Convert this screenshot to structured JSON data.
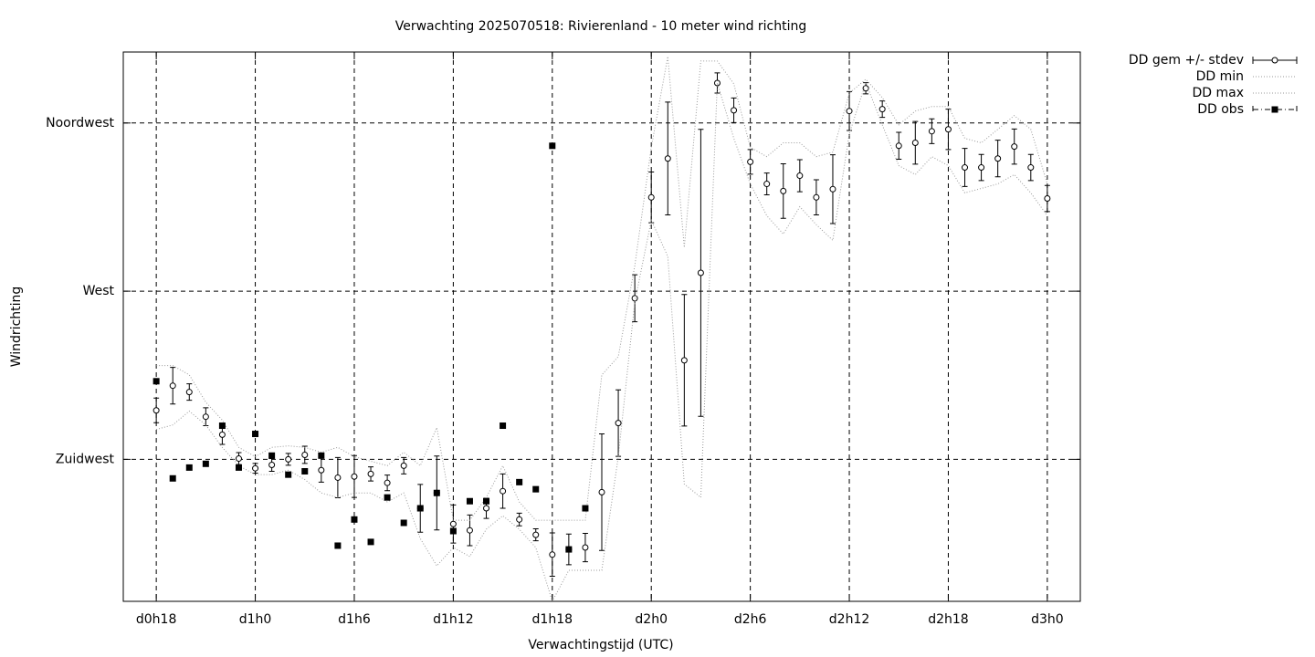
{
  "chart_data": {
    "type": "errorbar",
    "title": "Verwachting 2025070518: Rivierenland - 10 meter wind richting",
    "x_label": "Verwachtingstijd (UTC)",
    "y_label": "Windrichting",
    "x": [
      18,
      19,
      20,
      21,
      22,
      23,
      24,
      25,
      26,
      27,
      28,
      29,
      30,
      31,
      32,
      33,
      34,
      35,
      36,
      37,
      38,
      39,
      40,
      41,
      42,
      43,
      44,
      45,
      46,
      47,
      48,
      49,
      50,
      51,
      52,
      53,
      54,
      55,
      56,
      57,
      58,
      59,
      60,
      61,
      62,
      63,
      64,
      65,
      66,
      67,
      68,
      69,
      70,
      71,
      72
    ],
    "xlim": [
      16,
      74
    ],
    "xticks": [
      {
        "value": 18,
        "label": "d0h18"
      },
      {
        "value": 24,
        "label": "d1h0"
      },
      {
        "value": 30,
        "label": "d1h6"
      },
      {
        "value": 36,
        "label": "d1h12"
      },
      {
        "value": 42,
        "label": "d1h18"
      },
      {
        "value": 48,
        "label": "d2h0"
      },
      {
        "value": 54,
        "label": "d2h6"
      },
      {
        "value": 60,
        "label": "d2h12"
      },
      {
        "value": 66,
        "label": "d2h18"
      },
      {
        "value": 72,
        "label": "d3h0"
      }
    ],
    "ylim": [
      187,
      334
    ],
    "yticks": [
      {
        "value": 225,
        "label": "Zuidwest"
      },
      {
        "value": 270,
        "label": "West"
      },
      {
        "value": 315,
        "label": "Noordwest"
      }
    ],
    "grid": true,
    "legend": "outside-top-right",
    "series": [
      {
        "name": "DD gem +/- stdev",
        "style": "errorbar",
        "color": "#000000",
        "values": [
          238.1,
          244.7,
          243.0,
          236.4,
          231.6,
          225.2,
          222.6,
          223.5,
          225.0,
          226.2,
          222.1,
          220.1,
          220.4,
          221.1,
          218.7,
          223.3,
          211.9,
          216.0,
          207.7,
          206.0,
          211.9,
          216.5,
          208.9,
          204.8,
          199.5,
          200.9,
          201.4,
          216.2,
          234.7,
          268.1,
          295.1,
          305.5,
          251.5,
          274.9,
          325.7,
          318.4,
          304.6,
          298.7,
          296.8,
          300.9,
          295.1,
          297.3,
          318.2,
          324.3,
          318.7,
          308.9,
          309.7,
          312.8,
          313.3,
          303.1,
          303.1,
          305.5,
          308.7,
          303.1,
          294.8
        ],
        "errors": [
          3.3,
          4.9,
          2.2,
          2.4,
          2.6,
          1.6,
          1.3,
          1.7,
          1.6,
          2.3,
          3.2,
          5.4,
          5.6,
          1.9,
          2.1,
          2.2,
          6.4,
          9.9,
          5.1,
          4.1,
          2.7,
          4.6,
          1.7,
          1.6,
          5.8,
          4.1,
          3.8,
          15.6,
          8.9,
          6.3,
          6.8,
          15.1,
          17.6,
          38.4,
          2.7,
          3.3,
          3.3,
          2.9,
          7.3,
          4.3,
          4.7,
          9.2,
          5.2,
          1.5,
          2.2,
          3.6,
          5.7,
          3.3,
          5.4,
          5.1,
          3.5,
          4.9,
          4.7,
          3.5,
          3.5
        ]
      },
      {
        "name": "DD min",
        "style": "dotted",
        "color": "#9a9a9a",
        "values": [
          233.0,
          234.2,
          237.9,
          234.2,
          228.2,
          223.3,
          220.9,
          220.9,
          222.1,
          219.6,
          216.0,
          214.8,
          216.0,
          216.0,
          213.6,
          216.0,
          203.8,
          196.5,
          201.4,
          199.0,
          206.3,
          209.9,
          206.3,
          201.4,
          187.0,
          195.3,
          195.3,
          195.3,
          225.7,
          267.1,
          289.0,
          279.3,
          218.4,
          214.8,
          325.8,
          310.9,
          298.7,
          290.2,
          285.3,
          292.6,
          287.8,
          283.6,
          312.1,
          325.8,
          314.5,
          303.6,
          301.2,
          306.0,
          303.6,
          296.3,
          297.5,
          298.7,
          301.2,
          296.3,
          290.2
        ]
      },
      {
        "name": "DD max",
        "style": "dotted",
        "color": "#9a9a9a",
        "values": [
          250.1,
          250.1,
          247.6,
          240.3,
          235.5,
          228.2,
          225.7,
          228.2,
          228.6,
          228.2,
          226.9,
          228.2,
          225.7,
          224.5,
          223.3,
          226.9,
          223.3,
          233.5,
          208.7,
          208.7,
          214.8,
          223.3,
          213.6,
          208.7,
          208.7,
          208.7,
          208.7,
          247.6,
          252.5,
          276.8,
          308.5,
          332.8,
          281.7,
          331.6,
          331.6,
          325.5,
          308.5,
          306.0,
          309.7,
          309.7,
          306.0,
          307.2,
          323.0,
          326.7,
          321.8,
          314.5,
          318.2,
          319.4,
          319.4,
          310.9,
          309.7,
          313.3,
          317.0,
          313.3,
          298.7
        ]
      },
      {
        "name": "DD obs",
        "style": "points",
        "color": "#000000",
        "values": [
          245.9,
          219.9,
          222.8,
          223.8,
          234.0,
          222.8,
          231.8,
          226.0,
          220.9,
          221.8,
          226.0,
          201.9,
          208.9,
          202.9,
          214.8,
          208.0,
          211.9,
          216.0,
          205.8,
          213.8,
          213.8,
          234.0,
          218.9,
          217.0,
          308.9,
          200.9,
          211.9,
          null,
          null,
          null,
          null,
          null,
          null,
          null,
          null,
          null,
          null,
          null,
          null,
          null,
          null,
          null,
          null,
          null,
          null,
          null,
          null,
          null,
          null,
          null,
          null,
          null,
          null,
          null,
          null
        ]
      }
    ]
  }
}
